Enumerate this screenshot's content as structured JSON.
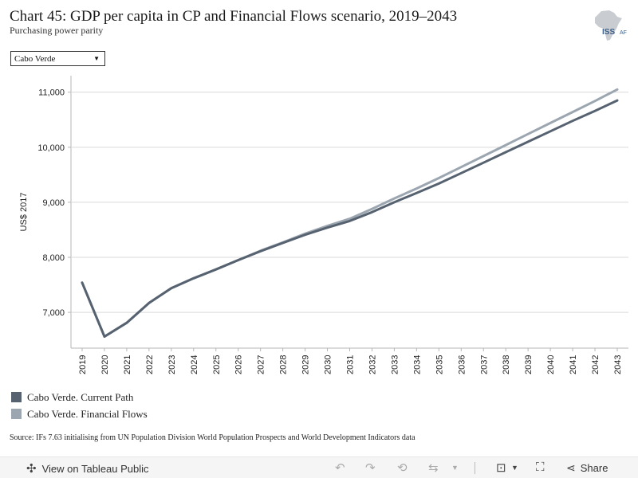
{
  "header": {
    "title": "Chart 45: GDP per capita in CP and Financial Flows scenario, 2019–2043",
    "subtitle": "Purchasing power parity",
    "logo_text": "ISSAFRICA"
  },
  "filter": {
    "selected": "Cabo Verde"
  },
  "chart_data": {
    "type": "line",
    "title": "Chart 45: GDP per capita in CP and Financial Flows scenario, 2019–2043",
    "subtitle": "Purchasing power parity",
    "xlabel": "",
    "ylabel": "US$ 2017",
    "x": [
      2019,
      2020,
      2021,
      2022,
      2023,
      2024,
      2025,
      2026,
      2027,
      2028,
      2029,
      2030,
      2031,
      2032,
      2033,
      2034,
      2035,
      2036,
      2037,
      2038,
      2039,
      2040,
      2041,
      2042,
      2043
    ],
    "ylim": [
      6350,
      11300
    ],
    "yticks": [
      7000,
      8000,
      9000,
      10000,
      11000
    ],
    "ytick_labels": [
      "7,000",
      "8,000",
      "9,000",
      "10,000",
      "11,000"
    ],
    "grid": true,
    "legend_position": "bottom-left",
    "series": [
      {
        "name": "Cabo Verde. Current Path",
        "color": "#566270",
        "values": [
          7540,
          6560,
          6810,
          7170,
          7440,
          7620,
          7780,
          7950,
          8110,
          8260,
          8410,
          8540,
          8660,
          8820,
          9000,
          9170,
          9340,
          9530,
          9720,
          9910,
          10100,
          10290,
          10480,
          10660,
          10850
        ]
      },
      {
        "name": "Cabo Verde. Financial Flows",
        "color": "#9ca6b0",
        "values": [
          7540,
          6560,
          6810,
          7170,
          7440,
          7620,
          7780,
          7950,
          8120,
          8270,
          8430,
          8570,
          8700,
          8880,
          9070,
          9250,
          9440,
          9640,
          9840,
          10040,
          10240,
          10440,
          10640,
          10840,
          11050
        ]
      }
    ]
  },
  "source": "Source: IFs 7.63 initialising from UN Population Division World Population Prospects and World Development Indicators data",
  "footer": {
    "view_label": "View on Tableau Public",
    "share_label": "Share"
  }
}
